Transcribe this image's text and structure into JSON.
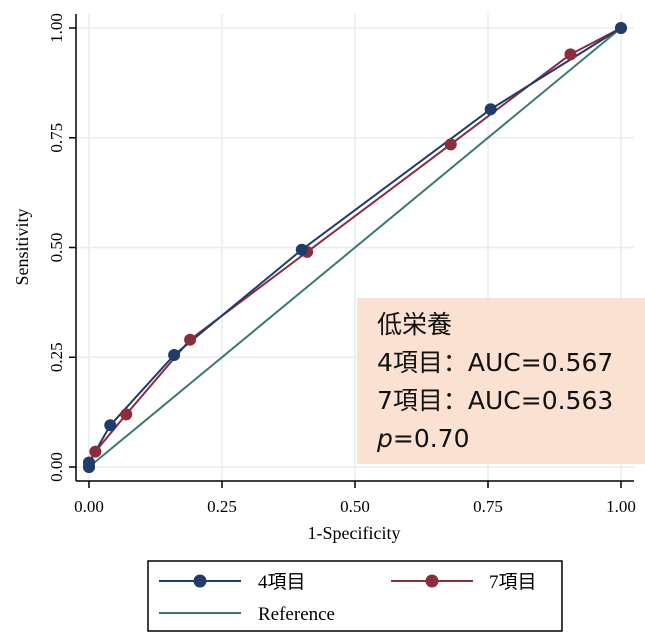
{
  "chart_data": {
    "type": "line",
    "xlabel": "1-Specificity",
    "ylabel": "Sensitivity",
    "xlim": [
      0,
      1
    ],
    "ylim": [
      0,
      1
    ],
    "xticks": [
      "0.00",
      "0.25",
      "0.50",
      "0.75",
      "1.00"
    ],
    "yticks": [
      "0.00",
      "0.25",
      "0.50",
      "0.75",
      "1.00"
    ],
    "grid": true,
    "legend_position": "bottom",
    "series": [
      {
        "name": "4項目",
        "color": "#1f3c6b",
        "marker": "circle",
        "x": [
          0,
          0.0,
          0.04,
          0.16,
          0.4,
          0.755,
          1.0
        ],
        "y": [
          0,
          0.01,
          0.095,
          0.255,
          0.495,
          0.815,
          1.0
        ]
      },
      {
        "name": "7項目",
        "color": "#8c2d3c",
        "marker": "circle",
        "x": [
          0,
          0.0,
          0.012,
          0.07,
          0.19,
          0.41,
          0.68,
          0.905,
          1.0
        ],
        "y": [
          0,
          0.01,
          0.035,
          0.12,
          0.29,
          0.49,
          0.735,
          0.94,
          1.0
        ]
      },
      {
        "name": "Reference",
        "color": "#3a7a72",
        "marker": "none",
        "x": [
          0,
          1
        ],
        "y": [
          0,
          1
        ]
      }
    ],
    "annotation": {
      "background": "#fae1d2",
      "lines": [
        "低栄養",
        "4項目：AUC=0.567",
        "7項目：AUC=0.563"
      ],
      "p_label": "p",
      "p_value": "=0.70"
    }
  }
}
